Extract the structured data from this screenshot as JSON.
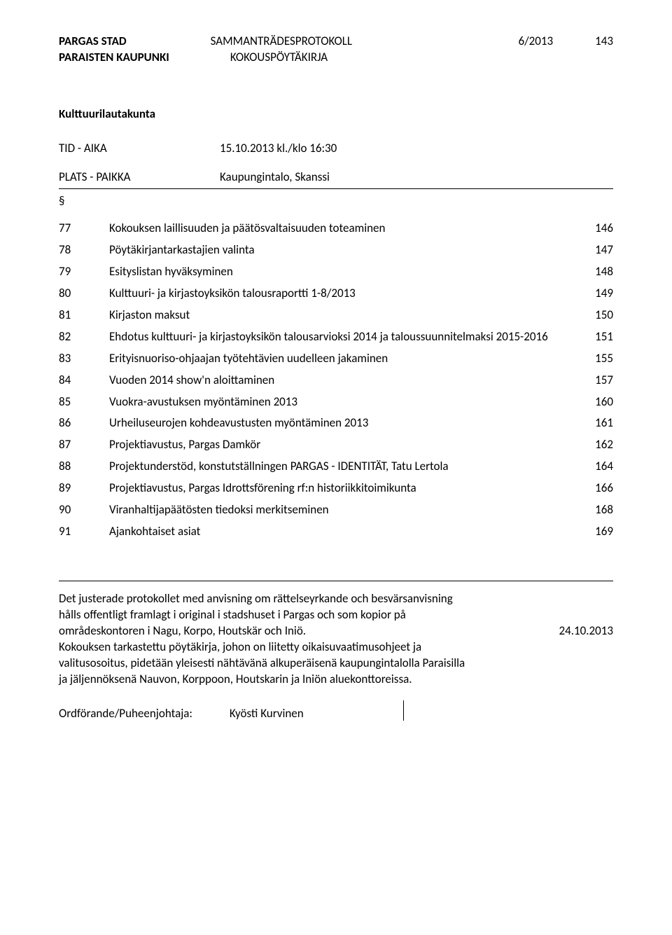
{
  "header": {
    "org1": "PARGAS STAD",
    "org2": "PARAISTEN KAUPUNKI",
    "doc1": "SAMMANTRÄDESPROTOKOLL",
    "doc2": "KOKOUSPÖYTÄKIRJA",
    "doc_num": "6/2013",
    "page_num": "143"
  },
  "section_title": "Kulttuurilautakunta",
  "tid": {
    "label": "TID - AIKA",
    "value": "15.10.2013 kl./klo 16:30"
  },
  "plats": {
    "label": "PLATS - PAIKKA",
    "value": "Kaupungintalo, Skanssi"
  },
  "sym": "§",
  "toc": [
    {
      "num": "77",
      "title": "Kokouksen laillisuuden ja päätösvaltaisuuden toteaminen",
      "page": "146"
    },
    {
      "num": "78",
      "title": "Pöytäkirjantarkastajien valinta",
      "page": "147"
    },
    {
      "num": "79",
      "title": "Esityslistan hyväksyminen",
      "page": "148"
    },
    {
      "num": "80",
      "title": "Kulttuuri- ja kirjastoyksikön talousraportti 1-8/2013",
      "page": "149"
    },
    {
      "num": "81",
      "title": "Kirjaston maksut",
      "page": "150"
    },
    {
      "num": "82",
      "title": "Ehdotus kulttuuri- ja kirjastoyksikön talousarvioksi 2014 ja taloussuunnitelmaksi 2015-2016",
      "page": "151"
    },
    {
      "num": "83",
      "title": "Erityisnuoriso-ohjaajan työtehtävien uudelleen jakaminen",
      "page": "155"
    },
    {
      "num": "84",
      "title": "Vuoden 2014 show'n aloittaminen",
      "page": "157"
    },
    {
      "num": "85",
      "title": "Vuokra-avustuksen myöntäminen 2013",
      "page": "160"
    },
    {
      "num": "86",
      "title": "Urheiluseurojen kohdeavustusten myöntäminen 2013",
      "page": "161"
    },
    {
      "num": "87",
      "title": "Projektiavustus, Pargas Damkör",
      "page": "162"
    },
    {
      "num": "88",
      "title": "Projektunderstöd, konstutställningen PARGAS - IDENTITÄT, Tatu Lertola",
      "page": "164"
    },
    {
      "num": "89",
      "title": "Projektiavustus, Pargas Idrottsförening rf:n historiikkitoimikunta",
      "page": "166"
    },
    {
      "num": "90",
      "title": "Viranhaltijapäätösten tiedoksi merkitseminen",
      "page": "168"
    },
    {
      "num": "91",
      "title": "Ajankohtaiset asiat",
      "page": "169"
    }
  ],
  "footer": {
    "line1": "Det justerade protokollet med anvisning om rättelseyrkande och besvärsanvisning",
    "line2": "hålls offentligt framlagt i original i stadshuset i Pargas och som kopior på",
    "line3_left": "områdeskontoren i Nagu, Korpo, Houtskär och Iniö.",
    "line3_right": "24.10.2013",
    "line4": "Kokouksen tarkastettu pöytäkirja, johon on liitetty oikaisuvaatimusohjeet ja",
    "line5": "valitusosoitus, pidetään yleisesti nähtävänä alkuperäisenä kaupungintalolla Paraisilla",
    "line6": "ja jäljennöksenä Nauvon, Korppoon, Houtskarin ja Iniön aluekonttoreissa."
  },
  "chair": {
    "label": "Ordförande/Puheenjohtaja:",
    "name": "Kyösti Kurvinen"
  }
}
